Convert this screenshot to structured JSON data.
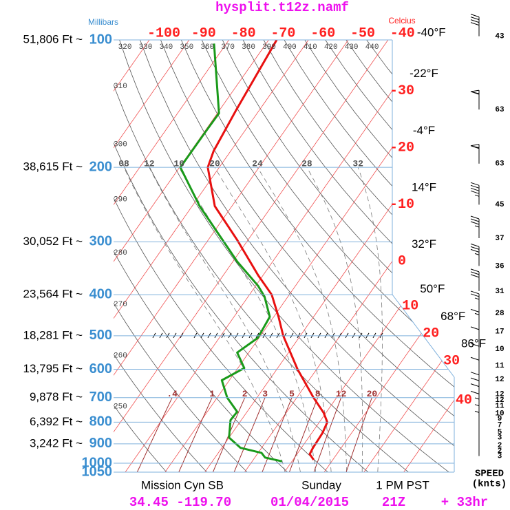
{
  "chart_data": {
    "type": "skewt",
    "title": "hysplit.t12z.namf",
    "y_axis_label": "Millibars",
    "x_axis_label": "Celcius",
    "ylim": [
      100,
      1050
    ],
    "ylog": true,
    "yticks": [
      100,
      200,
      300,
      400,
      500,
      600,
      700,
      800,
      900,
      1000,
      1050
    ],
    "altitude_labels": [
      "51,806 Ft ~",
      "38,615 Ft ~",
      "30,052 Ft ~",
      "23,564 Ft ~",
      "18,281 Ft ~",
      "13,795 Ft ~",
      "9,878 Ft ~",
      "6,392 Ft ~",
      "3,242 Ft ~",
      null,
      null
    ],
    "xticks": [
      -100,
      -90,
      -80,
      -70,
      -60,
      -50,
      -40,
      -30,
      -20,
      -10,
      0,
      10,
      20,
      30,
      40
    ],
    "fahrenheit_labels": [
      null,
      null,
      null,
      null,
      null,
      null,
      "-40°F",
      "-22°F",
      "-4°F",
      "14°F",
      "32°F",
      "50°F",
      "68°F",
      "86°F",
      null
    ],
    "isentropes": [
      250,
      260,
      270,
      280,
      290,
      300,
      310,
      320,
      330,
      340,
      350,
      360,
      370,
      380,
      390,
      400,
      410,
      420,
      430,
      440
    ],
    "moist_adiabats": [
      {
        "value": 8,
        "label": "08"
      },
      12,
      16,
      20,
      24,
      28,
      32
    ],
    "mixing_ratios": [
      {
        "value": 0.4,
        "label": ".4"
      },
      1,
      2,
      3,
      5,
      8,
      12,
      20
    ],
    "series": [
      {
        "color": "#e81010",
        "pressure": [
          100,
          147,
          183,
          200,
          247,
          298,
          360,
          400,
          451,
          500,
          600,
          700,
          760,
          800,
          850,
          920,
          952,
          982
        ],
        "values": [
          -68.0,
          -65.8,
          -64.3,
          -62.9,
          -54.3,
          -42.5,
          -31.2,
          -24.4,
          -18.8,
          -14.3,
          -4.8,
          4.2,
          9.4,
          12.0,
          12.7,
          12.9,
          13.2,
          15.2
        ]
      },
      {
        "color": "#1a9a1a",
        "pressure": [
          102,
          149,
          164,
          200,
          247,
          334,
          381,
          404,
          451,
          506,
          548,
          596,
          637,
          700,
          756,
          791,
          870,
          920,
          946,
          970,
          990
        ],
        "values": [
          -83.1,
          -69.6,
          -69.7,
          -69.8,
          -58.1,
          -38.9,
          -29.4,
          -25.9,
          -21.0,
          -20.3,
          -22.9,
          -18.4,
          -21.9,
          -17.5,
          -12.5,
          -12.7,
          -10.0,
          -5.3,
          0.9,
          2.6,
          7.5
        ]
      }
    ],
    "wind": {
      "pressure": [
        98,
        146,
        196,
        245,
        294,
        342,
        392,
        442,
        488,
        537,
        588,
        634,
        687,
        709,
        732,
        762,
        784,
        813,
        843,
        870,
        908,
        935,
        962
      ],
      "values": [
        43,
        63,
        63,
        45,
        37,
        36,
        31,
        28,
        17,
        10,
        11,
        12,
        12,
        12,
        11,
        10,
        9,
        7,
        5,
        3,
        2,
        2,
        3
      ],
      "label_lines": [
        "SPEED",
        "(knts)"
      ]
    },
    "location": "Mission Cyn SB",
    "day": "Sunday",
    "local_time": "1 PM PST",
    "coordinates": "34.45 -119.70",
    "date": "01/04/2015",
    "run": "21Z",
    "forecast": "+ 33hr"
  }
}
